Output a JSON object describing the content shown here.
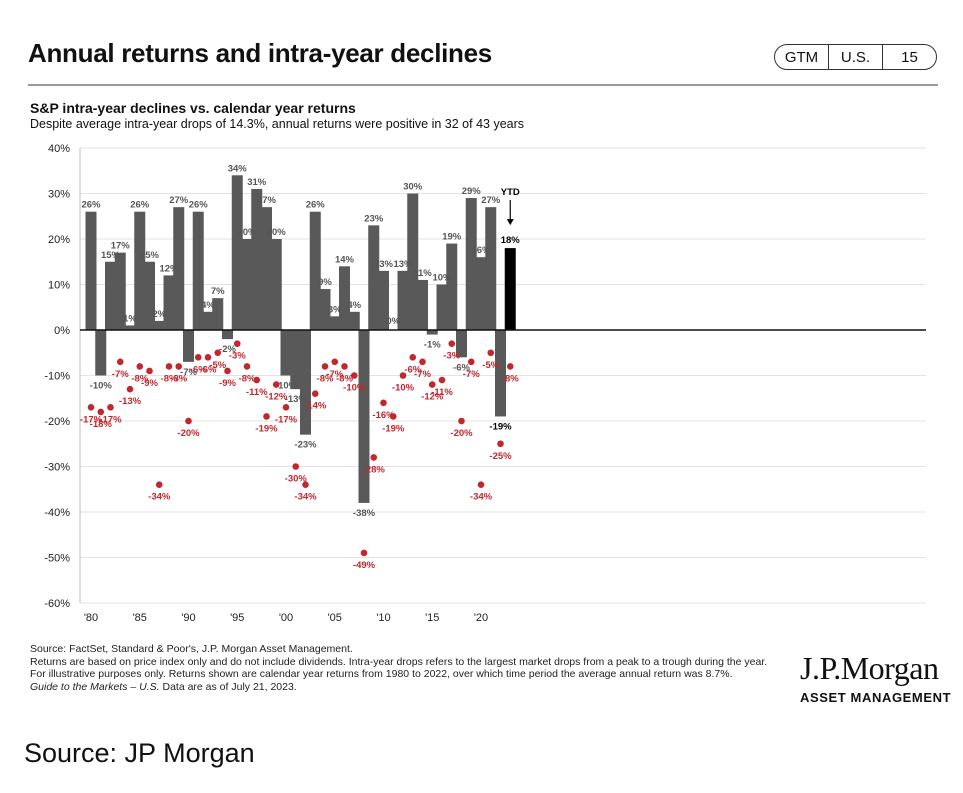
{
  "header": {
    "title": "Annual returns and intra-year declines",
    "badge": [
      "GTM",
      "U.S.",
      "15"
    ]
  },
  "chart_header": {
    "title": "S&P intra-year declines vs. calendar year returns",
    "subtitle": "Despite average intra-year drops of 14.3%, annual returns were positive in 32 of 43 years"
  },
  "chart_data": {
    "type": "bar",
    "title": "S&P intra-year declines vs. calendar year returns",
    "xlabel": "",
    "ylabel": "",
    "ylim": [
      -60,
      40
    ],
    "yticks": [
      40,
      30,
      20,
      10,
      0,
      -10,
      -20,
      -30,
      -40,
      -50,
      -60
    ],
    "ytick_labels": [
      "40%",
      "30%",
      "20%",
      "10%",
      "0%",
      "-10%",
      "-20%",
      "-30%",
      "-40%",
      "-50%",
      "-60%"
    ],
    "x": [
      1980,
      1981,
      1982,
      1983,
      1984,
      1985,
      1986,
      1987,
      1988,
      1989,
      1990,
      1991,
      1992,
      1993,
      1994,
      1995,
      1996,
      1997,
      1998,
      1999,
      2000,
      2001,
      2002,
      2003,
      2004,
      2005,
      2006,
      2007,
      2008,
      2009,
      2010,
      2011,
      2012,
      2013,
      2014,
      2015,
      2016,
      2017,
      2018,
      2019,
      2020,
      2021,
      2022,
      2023
    ],
    "xtick_years": [
      1980,
      1985,
      1990,
      1995,
      2000,
      2005,
      2010,
      2015,
      2020
    ],
    "xtick_labels": [
      "'80",
      "'85",
      "'90",
      "'95",
      "'00",
      "'05",
      "'10",
      "'15",
      "'20"
    ],
    "series": [
      {
        "name": "Calendar year return",
        "mark": "bar",
        "values": [
          26,
          -10,
          15,
          17,
          1,
          26,
          15,
          2,
          12,
          27,
          -7,
          26,
          4,
          7,
          -2,
          34,
          20,
          31,
          27,
          20,
          -10,
          -13,
          -23,
          26,
          9,
          3,
          14,
          4,
          -38,
          23,
          13,
          0,
          13,
          30,
          11,
          -1,
          10,
          19,
          -6,
          29,
          16,
          27,
          -19,
          18
        ],
        "labels": [
          "26%",
          "-10%",
          "15%",
          "17%",
          "1%",
          "26%",
          "15%",
          "2%",
          "12%",
          "27%",
          "-7%",
          "26%",
          "4%",
          "7%",
          "-2%",
          "34%",
          "20%",
          "31%",
          "27%",
          "20%",
          "-10%",
          "-13%",
          "-23%",
          "26%",
          "9%",
          "3%",
          "14%",
          "4%",
          "-38%",
          "23%",
          "13%",
          "0%",
          "13%",
          "30%",
          "11%",
          "-1%",
          "10%",
          "19%",
          "-6%",
          "29%",
          "16%",
          "27%",
          "-19%",
          "18%"
        ]
      },
      {
        "name": "Intra-year decline",
        "mark": "point",
        "values": [
          -17,
          -18,
          -17,
          -7,
          -13,
          -8,
          -9,
          -34,
          -8,
          -8,
          -20,
          -6,
          -6,
          -5,
          -9,
          -3,
          -8,
          -11,
          -19,
          -12,
          -17,
          -30,
          -34,
          -14,
          -8,
          -7,
          -8,
          -10,
          -49,
          -28,
          -16,
          -19,
          -10,
          -6,
          -7,
          -12,
          -11,
          -3,
          -20,
          -7,
          -34,
          -5,
          -25,
          -8
        ],
        "labels": [
          "-17%",
          "-18%",
          "-17%",
          "-7%",
          "-13%",
          "-8%",
          "-9%",
          "-34%",
          "-8%",
          "-8%",
          "-20%",
          "-6%",
          "-6%",
          "-5%",
          "-9%",
          "-3%",
          "-8%",
          "-11%",
          "-19%",
          "-12%",
          "-17%",
          "-30%",
          "-34%",
          "-14%",
          "-8%",
          "-7%",
          "-8%",
          "-10%",
          "-49%",
          "-28%",
          "-16%",
          "-19%",
          "-10%",
          "-6%",
          "-7%",
          "-12%",
          "-11%",
          "-3%",
          "-20%",
          "-7%",
          "-34%",
          "-5%",
          "-25%",
          "-8%"
        ]
      }
    ],
    "ytd_label": "YTD",
    "colors": {
      "bar": "#595959",
      "bar_ytd": "#000000",
      "decline": "#c1272d",
      "label": "#555555"
    }
  },
  "footnote": {
    "source": "Source: FactSet, Standard & Poor's, J.P. Morgan Asset Management.",
    "note": "Returns are based on price index only and do not include dividends. Intra-year drops refers to the largest market drops from a peak to a trough during the year. For illustrative purposes only. Returns shown are calendar year returns from 1980 to 2022, over which time period the average annual return was 8.7%.",
    "guide_italic": "Guide to the Markets – U.S.",
    "guide_rest": " Data are as of July 21, 2023."
  },
  "brand": {
    "name": "J.P.Morgan",
    "sub": "ASSET MANAGEMENT"
  },
  "caption": "Source: JP Morgan"
}
